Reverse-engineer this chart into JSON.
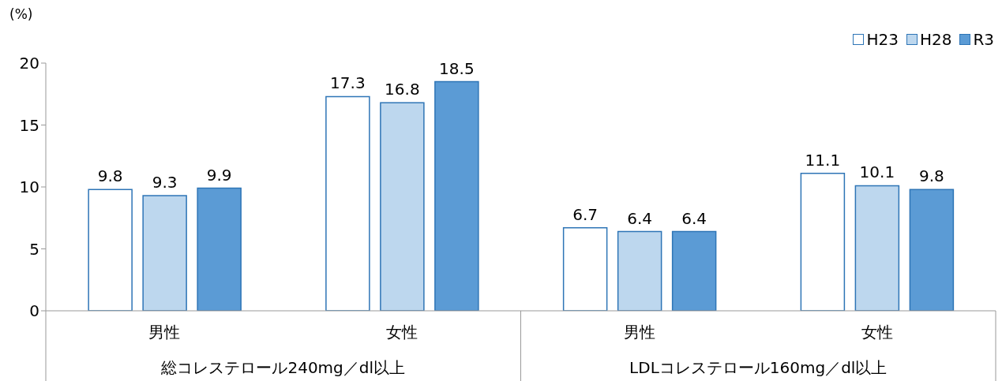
{
  "chart_data": {
    "type": "bar",
    "ylabel": "(%)",
    "categories": [
      "男性",
      "女性",
      "男性",
      "女性"
    ],
    "series": [
      {
        "name": "H23",
        "color": "#ffffff",
        "values": [
          9.8,
          17.3,
          6.7,
          11.1
        ]
      },
      {
        "name": "H28",
        "color": "#bdd7ee",
        "values": [
          9.3,
          16.8,
          6.4,
          10.1
        ]
      },
      {
        "name": "R3",
        "color": "#5b9bd5",
        "values": [
          9.9,
          18.5,
          6.4,
          9.8
        ]
      }
    ],
    "ylim": [
      0,
      20
    ],
    "yticks": [
      0,
      5,
      10,
      15,
      20
    ],
    "grid": false,
    "legend": "top right",
    "data_labels": true,
    "annotations": [
      "総コレステロール240mg／dl以上",
      "LDLコレステロール160mg／dl以上"
    ]
  }
}
